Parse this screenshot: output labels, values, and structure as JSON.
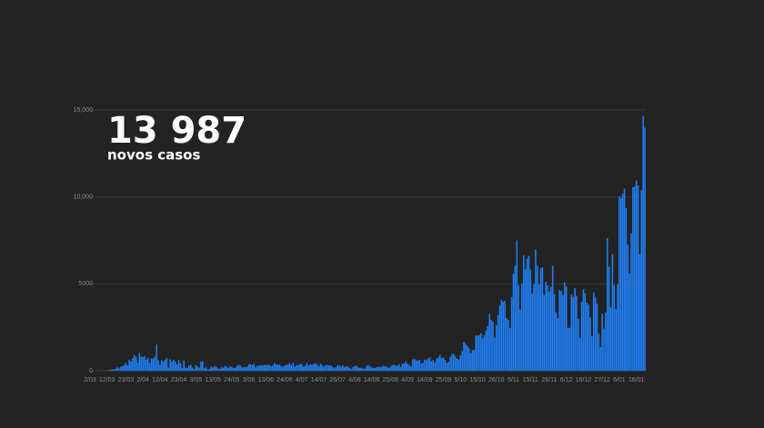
{
  "chart_data": {
    "type": "bar",
    "headline": "13 987",
    "headline_label": "novos casos",
    "color": "#1f7ef3",
    "ylim": [
      0,
      15000
    ],
    "yticks": [
      0,
      5000,
      {
        "value": 10000,
        "label": "10,000"
      },
      {
        "value": 15000,
        "label": "15,000"
      }
    ],
    "grid": true,
    "categories": [
      "2/03",
      null,
      null,
      null,
      null,
      null,
      null,
      null,
      null,
      null,
      "12/03",
      null,
      null,
      null,
      null,
      null,
      null,
      null,
      null,
      null,
      null,
      "23/03",
      null,
      null,
      null,
      null,
      null,
      null,
      null,
      null,
      null,
      "2/04",
      null,
      null,
      null,
      null,
      null,
      null,
      null,
      null,
      null,
      "12/04",
      null,
      null,
      null,
      null,
      null,
      null,
      null,
      null,
      null,
      null,
      "23/04",
      null,
      null,
      null,
      null,
      null,
      null,
      null,
      null,
      null,
      "3/05",
      null,
      null,
      null,
      null,
      null,
      null,
      null,
      null,
      null,
      "13/05",
      null,
      null,
      null,
      null,
      null,
      null,
      null,
      null,
      null,
      null,
      "24/05",
      null,
      null,
      null,
      null,
      null,
      null,
      null,
      null,
      null,
      "3/06",
      null,
      null,
      null,
      null,
      null,
      null,
      null,
      null,
      null,
      "13/06",
      null,
      null,
      null,
      null,
      null,
      null,
      null,
      null,
      null,
      null,
      "24/06",
      null,
      null,
      null,
      null,
      null,
      null,
      null,
      null,
      null,
      "4/07",
      null,
      null,
      null,
      null,
      null,
      null,
      null,
      null,
      null,
      "14/07",
      null,
      null,
      null,
      null,
      null,
      null,
      null,
      null,
      null,
      null,
      "25/07",
      null,
      null,
      null,
      null,
      null,
      null,
      null,
      null,
      null,
      "4/08",
      null,
      null,
      null,
      null,
      null,
      null,
      null,
      null,
      null,
      "14/08",
      null,
      null,
      null,
      null,
      null,
      null,
      null,
      null,
      null,
      null,
      "25/08",
      null,
      null,
      null,
      null,
      null,
      null,
      null,
      null,
      null,
      "4/09",
      null,
      null,
      null,
      null,
      null,
      null,
      null,
      null,
      null,
      "14/09",
      null,
      null,
      null,
      null,
      null,
      null,
      null,
      null,
      null,
      null,
      "25/09",
      null,
      null,
      null,
      null,
      null,
      null,
      null,
      null,
      null,
      "5/10",
      null,
      null,
      null,
      null,
      null,
      null,
      null,
      null,
      null,
      "15/10",
      null,
      null,
      null,
      null,
      null,
      null,
      null,
      null,
      null,
      null,
      "26/10",
      null,
      null,
      null,
      null,
      null,
      null,
      null,
      null,
      null,
      "5/11",
      null,
      null,
      null,
      null,
      null,
      null,
      null,
      null,
      null,
      "15/11",
      null,
      null,
      null,
      null,
      null,
      null,
      null,
      null,
      null,
      null,
      "26/11",
      null,
      null,
      null,
      null,
      null,
      null,
      null,
      null,
      null,
      "6/12",
      null,
      null,
      null,
      null,
      null,
      null,
      null,
      null,
      null,
      "16/12",
      null,
      null,
      null,
      null,
      null,
      null,
      null,
      null,
      null,
      null,
      "27/12",
      null,
      null,
      null,
      null,
      null,
      null,
      null,
      null,
      null,
      "6/01",
      null,
      null,
      null,
      null,
      null,
      null,
      null,
      null,
      null,
      "16/01",
      null,
      null,
      null,
      null,
      null
    ],
    "values": [
      2,
      2,
      1,
      4,
      4,
      8,
      9,
      9,
      2,
      18,
      19,
      34,
      57,
      76,
      86,
      117,
      194,
      143,
      235,
      260,
      320,
      460,
      302,
      633,
      549,
      724,
      902,
      792,
      446,
      1035,
      808,
      783,
      852,
      638,
      754,
      452,
      712,
      699,
      815,
      1516,
      598,
      349,
      598,
      514,
      643,
      750,
      181,
      657,
      521,
      629,
      516,
      371,
      603,
      444,
      163,
      595,
      183,
      163,
      295,
      345,
      181,
      92,
      326,
      242,
      178,
      533,
      553,
      138,
      226,
      85,
      98,
      234,
      187,
      264,
      227,
      138,
      98,
      223,
      173,
      288,
      252,
      163,
      271,
      219,
      165,
      167,
      271,
      350,
      304,
      193,
      200,
      195,
      226,
      366,
      377,
      330,
      382,
      192,
      295,
      294,
      328,
      294,
      346,
      309,
      342,
      331,
      268,
      311,
      426,
      367,
      346,
      345,
      259,
      243,
      311,
      328,
      367,
      451,
      313,
      457,
      229,
      328,
      313,
      413,
      374,
      229,
      299,
      443,
      286,
      375,
      342,
      402,
      443,
      358,
      252,
      402,
      318,
      232,
      312,
      339,
      305,
      313,
      235,
      141,
      204,
      302,
      297,
      226,
      311,
      203,
      270,
      239,
      172,
      106,
      204,
      278,
      290,
      214,
      156,
      173,
      118,
      132,
      290,
      325,
      252,
      178,
      165,
      146,
      222,
      219,
      233,
      232,
      291,
      248,
      224,
      154,
      246,
      311,
      361,
      292,
      294,
      385,
      217,
      401,
      427,
      524,
      405,
      330,
      259,
      643,
      687,
      614,
      570,
      623,
      418,
      457,
      646,
      599,
      708,
      770,
      552,
      624,
      471,
      691,
      778,
      904,
      730,
      757,
      632,
      446,
      505,
      807,
      953,
      964,
      826,
      692,
      646,
      887,
      1128,
      1646,
      1543,
      1440,
      1302,
      1011,
      1186,
      1201,
      2040,
      2010,
      2050,
      2150,
      1874,
      2049,
      2320,
      2565,
      3270,
      2917,
      2820,
      1912,
      2635,
      3199,
      3753,
      4085,
      3959,
      4007,
      3030,
      2914,
      2445,
      4242,
      5591,
      6040,
      7497,
      4926,
      3524,
      4998,
      6640,
      5839,
      6437,
      6602,
      5823,
      4435,
      4973,
      6994,
      6025,
      4962,
      5919,
      5944,
      4361,
      5120,
      4916,
      4539,
      4846,
      6049,
      4415,
      3339,
      3003,
      4645,
      4584,
      4357,
      5071,
      4848,
      2475,
      2465,
      4376,
      4255,
      4739,
      4293,
      2979,
      1886,
      3965,
      4690,
      4472,
      3910,
      3806,
      3067,
      1978,
      4508,
      4221,
      3864,
      2138,
      1355,
      3285,
      2429,
      3343,
      7627,
      5970,
      3632,
      6713,
      4929,
      3542,
      4956,
      10027,
      9927,
      10176,
      10476,
      9370,
      7259,
      5604,
      7916,
      10556,
      10595,
      10947,
      10663,
      6702,
      10385,
      14647,
      13987
    ]
  }
}
